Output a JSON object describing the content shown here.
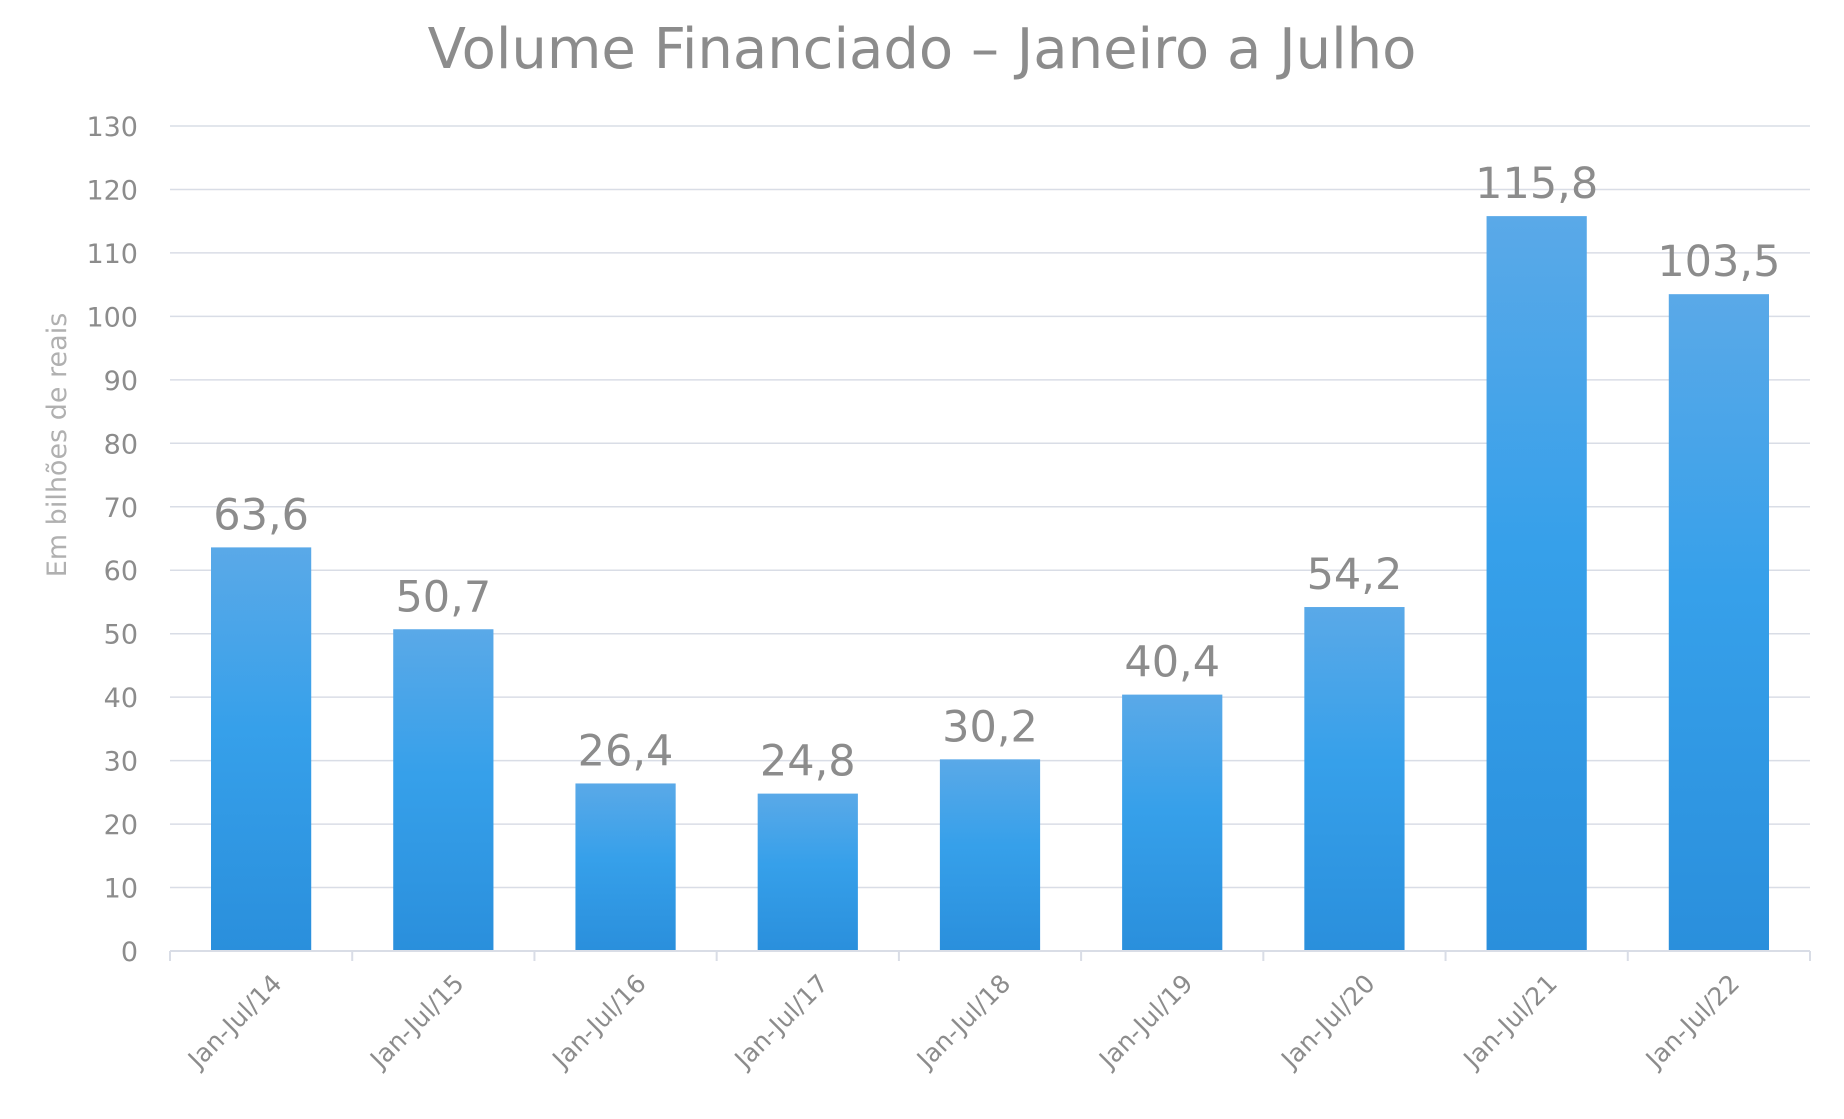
{
  "chart_data": {
    "type": "bar",
    "title": "Volume Financiado – Janeiro a Julho",
    "ylabel": "Em bilhões de reais",
    "xlabel": "",
    "categories": [
      "Jan-Jul/14",
      "Jan-Jul/15",
      "Jan-Jul/16",
      "Jan-Jul/17",
      "Jan-Jul/18",
      "Jan-Jul/19",
      "Jan-Jul/20",
      "Jan-Jul/21",
      "Jan-Jul/22"
    ],
    "values": [
      63.6,
      50.7,
      26.4,
      24.8,
      30.2,
      40.4,
      54.2,
      115.8,
      103.5
    ],
    "data_labels": [
      "63,6",
      "50,7",
      "26,4",
      "24,8",
      "30,2",
      "40,4",
      "54,2",
      "115,8",
      "103,5"
    ],
    "ylim": [
      0,
      130
    ],
    "yticks": [
      0,
      10,
      20,
      30,
      40,
      50,
      60,
      70,
      80,
      90,
      100,
      110,
      120,
      130
    ],
    "grid": true,
    "legend": "none",
    "colors": {
      "bar_top": "#5aa9e8",
      "bar_mid": "#36a0ea",
      "bar_bottom": "#2a8fdc",
      "grid": "#d9dde6",
      "text": "#8c8c8c"
    }
  }
}
